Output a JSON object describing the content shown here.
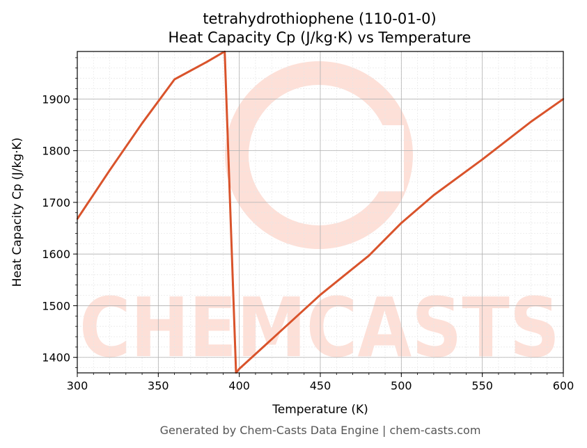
{
  "chart_data": {
    "type": "line",
    "title": "tetrahydrothiophene (110-01-0)",
    "subtitle": "Heat Capacity Cp (J/kg·K) vs Temperature",
    "xlabel": "Temperature (K)",
    "ylabel": "Heat Capacity Cp (J/kg·K)",
    "xlim": [
      300,
      600
    ],
    "ylim": [
      1370,
      1992
    ],
    "x_ticks": [
      300,
      350,
      400,
      450,
      500,
      550,
      600
    ],
    "y_ticks": [
      1400,
      1500,
      1600,
      1700,
      1800,
      1900
    ],
    "grid": true,
    "line_color": "#d9532b",
    "series": [
      {
        "x": [
          300,
          320,
          340,
          360,
          380,
          391,
          398,
          400,
          420,
          450,
          480,
          500,
          520,
          550,
          580,
          600
        ],
        "values": [
          1668,
          1762,
          1853,
          1938,
          1972,
          1992,
          1370,
          1378,
          1435,
          1521,
          1597,
          1660,
          1714,
          1783,
          1856,
          1900
        ]
      }
    ]
  },
  "watermark": "CHEMCASTS",
  "footer": "Generated by Chem-Casts Data Engine | chem-casts.com"
}
